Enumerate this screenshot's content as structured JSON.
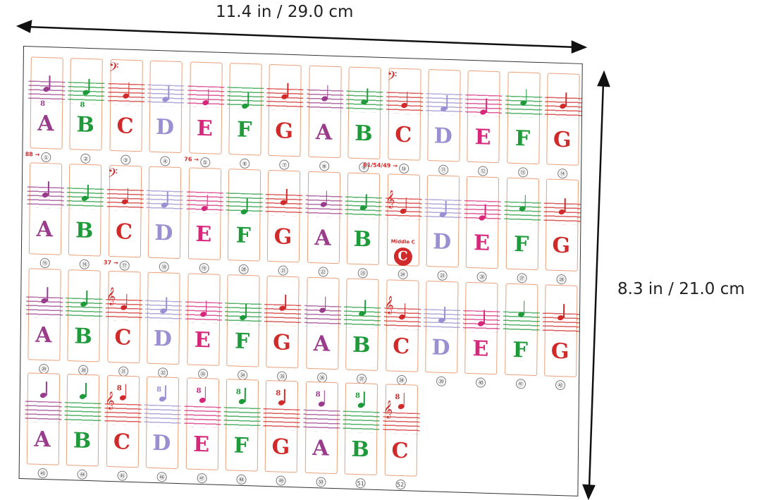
{
  "dimensions": {
    "width_label": "11.4 in / 29.0 cm",
    "height_label": "8.3 in / 21.0 cm"
  },
  "colors": {
    "A": "#9a3c8c",
    "B": "#1f9a3a",
    "C": "#d12a2a",
    "D": "#9a8fd0",
    "E": "#d6277a",
    "F": "#1f9a3a",
    "G": "#d12a2a",
    "key_border": "#e9a07a"
  },
  "clef_glyphs": {
    "bass": "𝄢",
    "treble": "𝄞"
  },
  "octave_mark": "8",
  "middle_c_label": "Middle C",
  "rows": [
    {
      "keys": [
        {
          "letter": "A",
          "number": "①",
          "marker": "88 →",
          "octave": "8"
        },
        {
          "letter": "B",
          "number": "②",
          "octave": "8"
        },
        {
          "letter": "C",
          "number": "③",
          "clef": "bass"
        },
        {
          "letter": "D",
          "number": "④"
        },
        {
          "letter": "E",
          "number": "⑤",
          "marker": "76 →"
        },
        {
          "letter": "F",
          "number": "⑥"
        },
        {
          "letter": "G",
          "number": "⑦"
        },
        {
          "letter": "A",
          "number": "⑧"
        },
        {
          "letter": "B",
          "number": "⑨"
        },
        {
          "letter": "C",
          "number": "⑩",
          "marker": "61/54/49 →",
          "clef": "bass"
        },
        {
          "letter": "D",
          "number": "⑪"
        },
        {
          "letter": "E",
          "number": "⑫"
        },
        {
          "letter": "F",
          "number": "⑬"
        },
        {
          "letter": "G",
          "number": "⑭"
        }
      ]
    },
    {
      "keys": [
        {
          "letter": "A",
          "number": "⑮"
        },
        {
          "letter": "B",
          "number": "⑯"
        },
        {
          "letter": "C",
          "number": "⑰",
          "marker": "37 →",
          "clef": "bass"
        },
        {
          "letter": "D",
          "number": "⑱"
        },
        {
          "letter": "E",
          "number": "⑲"
        },
        {
          "letter": "F",
          "number": "⑳"
        },
        {
          "letter": "G",
          "number": "㉑"
        },
        {
          "letter": "A",
          "number": "㉒"
        },
        {
          "letter": "B",
          "number": "㉓"
        },
        {
          "letter": "C",
          "number": "㉔",
          "clef": "treble",
          "middle_c": true
        },
        {
          "letter": "D",
          "number": "㉕"
        },
        {
          "letter": "E",
          "number": "㉖"
        },
        {
          "letter": "F",
          "number": "㉗"
        },
        {
          "letter": "G",
          "number": "㉘"
        }
      ]
    },
    {
      "keys": [
        {
          "letter": "A",
          "number": "㉙"
        },
        {
          "letter": "B",
          "number": "㉚"
        },
        {
          "letter": "C",
          "number": "㉛",
          "clef": "treble"
        },
        {
          "letter": "D",
          "number": "㉜"
        },
        {
          "letter": "E",
          "number": "㉝"
        },
        {
          "letter": "F",
          "number": "㉞"
        },
        {
          "letter": "G",
          "number": "㉟"
        },
        {
          "letter": "A",
          "number": "㊱"
        },
        {
          "letter": "B",
          "number": "㊲"
        },
        {
          "letter": "C",
          "number": "㊳",
          "clef": "treble"
        },
        {
          "letter": "D",
          "number": "㊴"
        },
        {
          "letter": "E",
          "number": "㊵"
        },
        {
          "letter": "F",
          "number": "㊶"
        },
        {
          "letter": "G",
          "number": "㊷"
        }
      ]
    },
    {
      "keys": [
        {
          "letter": "A",
          "number": "㊸"
        },
        {
          "letter": "B",
          "number": "㊹"
        },
        {
          "letter": "C",
          "number": "㊺",
          "clef": "treble",
          "octave": "8"
        },
        {
          "letter": "D",
          "number": "㊻",
          "octave": "8"
        },
        {
          "letter": "E",
          "number": "㊼",
          "octave": "8"
        },
        {
          "letter": "F",
          "number": "㊽",
          "octave": "8"
        },
        {
          "letter": "G",
          "number": "㊾",
          "octave": "8"
        },
        {
          "letter": "A",
          "number": "㊿",
          "octave": "8"
        },
        {
          "letter": "B",
          "number": "51",
          "octave": "8"
        },
        {
          "letter": "C",
          "number": "52",
          "clef": "treble",
          "octave": "8"
        }
      ]
    }
  ]
}
